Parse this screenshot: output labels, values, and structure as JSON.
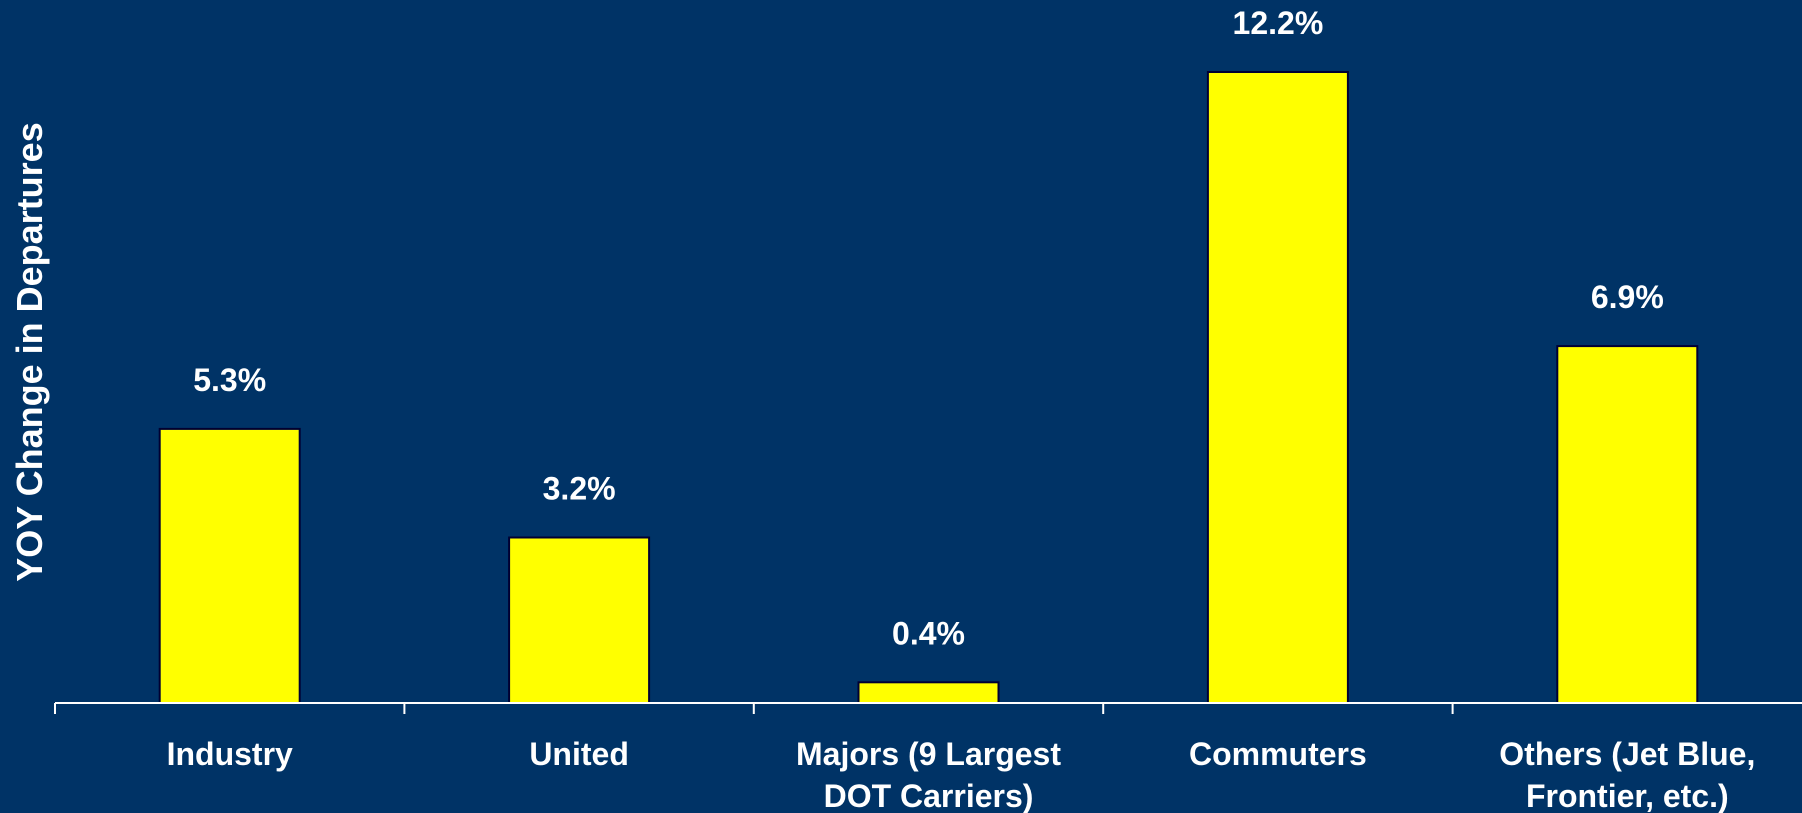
{
  "chart_data": {
    "type": "bar",
    "categories": [
      [
        "Industry"
      ],
      [
        "United"
      ],
      [
        "Majors (9 Largest",
        "DOT Carriers)"
      ],
      [
        "Commuters"
      ],
      [
        "Others (Jet Blue,",
        "Frontier, etc.)"
      ]
    ],
    "values": [
      5.3,
      3.2,
      0.4,
      12.2,
      6.9
    ],
    "data_labels": [
      "5.3%",
      "3.2%",
      "0.4%",
      "12.2%",
      "6.9%"
    ],
    "title": "",
    "xlabel": "",
    "ylabel": "YOY Change in Departures",
    "ylim": [
      0,
      12.2
    ],
    "grid": false,
    "legend": "none",
    "colors": {
      "background": "#003366",
      "bar": "#ffff00",
      "bar_outline": "#000033",
      "axis": "#ffffff",
      "text": "#ffffff"
    }
  }
}
